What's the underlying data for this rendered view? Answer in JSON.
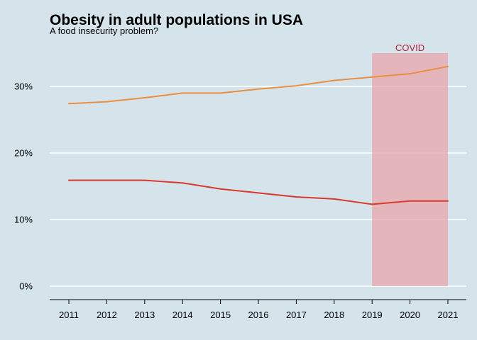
{
  "colors": {
    "background": "#d5e4eb",
    "grid": "#ffffff",
    "axis": "#000000",
    "covid_band": "#e8a5ab",
    "covid_text": "#b22234"
  },
  "chart_data": {
    "type": "line",
    "title": "Obesity in adult populations in USA",
    "subtitle": "A food insecurity problem?",
    "xlabel": "",
    "ylabel": "",
    "x": [
      2011,
      2012,
      2013,
      2014,
      2015,
      2016,
      2017,
      2018,
      2019,
      2020,
      2021
    ],
    "x_tick_labels": [
      "2011",
      "2012",
      "2013",
      "2014",
      "2015",
      "2016",
      "2017",
      "2018",
      "2019",
      "2020",
      "2021"
    ],
    "y_ticks": [
      0,
      10,
      20,
      30
    ],
    "y_tick_labels": [
      "0%",
      "10%",
      "20%",
      "30%"
    ],
    "ylim": [
      0,
      35
    ],
    "grid": "horizontal",
    "legend": "none",
    "series": [
      {
        "color": "#e8903f",
        "values": [
          27.4,
          27.7,
          28.3,
          29.0,
          29.0,
          29.6,
          30.1,
          30.9,
          31.4,
          31.9,
          33.0
        ]
      },
      {
        "color": "#d93a2b",
        "values": [
          15.9,
          15.9,
          15.9,
          15.5,
          14.6,
          14.0,
          13.4,
          13.1,
          12.3,
          12.8,
          12.8
        ]
      }
    ],
    "annotations": [
      {
        "label": "COVID",
        "x_start": 2019,
        "x_end": 2021,
        "y_top": 35
      }
    ]
  }
}
